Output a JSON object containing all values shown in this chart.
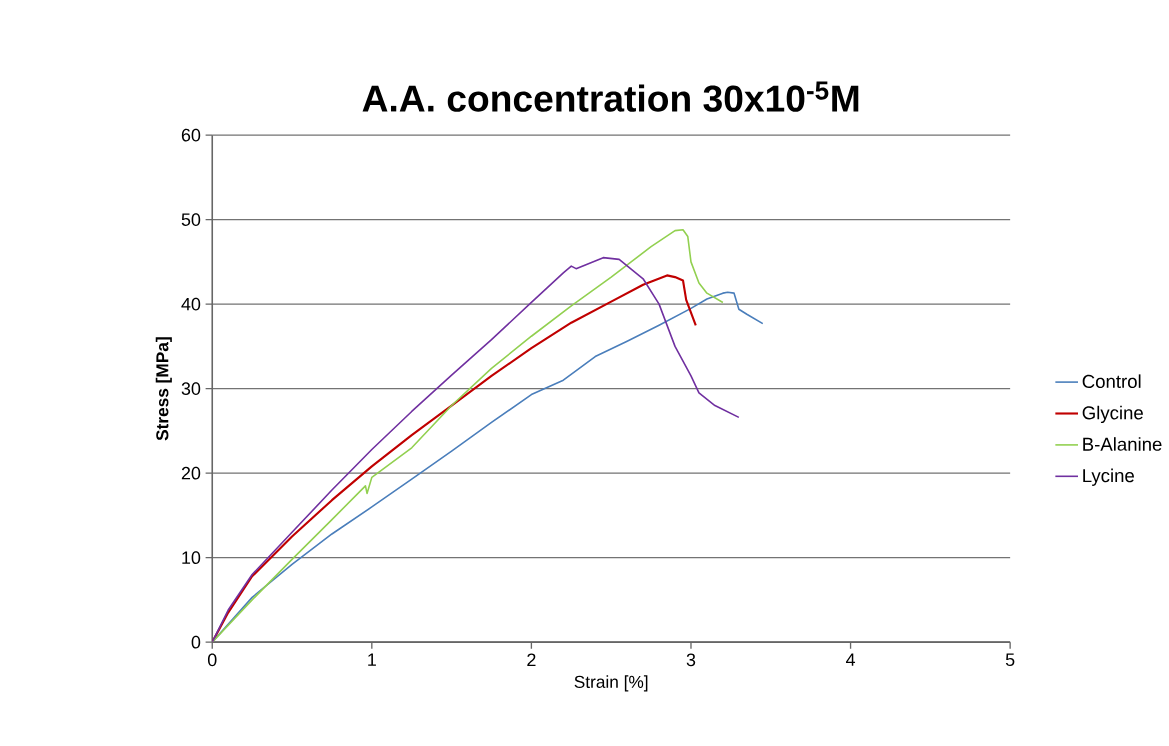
{
  "chart_data": {
    "type": "line",
    "title": "A.A. concentration 30x10$^{-5}$M",
    "xlabel": "Strain [%]",
    "ylabel": "Stress [MPa]",
    "xlim": [
      0,
      5
    ],
    "ylim": [
      0,
      60
    ],
    "xticks": [
      0,
      1,
      2,
      3,
      4,
      5
    ],
    "yticks": [
      0,
      10,
      20,
      30,
      40,
      50,
      60
    ],
    "grid": "y",
    "legend": "right",
    "marker": "none",
    "line_style": "solid",
    "series": [
      {
        "name": "Control",
        "color": "#4a7ebb",
        "x": [
          0,
          0.25,
          0.5,
          0.75,
          1,
          1.25,
          1.5,
          1.75,
          2,
          2.2,
          2.4,
          2.6,
          2.8,
          3.0,
          3.1,
          3.2,
          3.23,
          3.27,
          3.3,
          3.35,
          3.45
        ],
        "values": [
          0,
          5.3,
          9.2,
          12.8,
          16,
          19.3,
          22.6,
          26,
          29.3,
          31,
          33.8,
          35.6,
          37.5,
          39.5,
          40.6,
          41.3,
          41.4,
          41.3,
          39.4,
          38.8,
          37.7
        ]
      },
      {
        "name": "Glycine",
        "color": "#c00000",
        "x": [
          0,
          0.1,
          0.25,
          0.5,
          0.75,
          1,
          1.25,
          1.5,
          1.75,
          2,
          2.25,
          2.5,
          2.7,
          2.85,
          2.9,
          2.95,
          2.97,
          3.0,
          3.03
        ],
        "values": [
          0,
          3.5,
          7.8,
          12.5,
          16.8,
          20.8,
          24.5,
          28,
          31.5,
          34.8,
          37.8,
          40.3,
          42.3,
          43.4,
          43.2,
          42.8,
          40.5,
          39,
          37.5
        ]
      },
      {
        "name": "B-Alanine",
        "color": "#92d050",
        "x": [
          0,
          0.25,
          0.5,
          0.75,
          0.96,
          0.97,
          1.0,
          1.25,
          1.5,
          1.75,
          2.0,
          2.25,
          2.5,
          2.75,
          2.9,
          2.95,
          2.98,
          3.0,
          3.05,
          3.1,
          3.2
        ],
        "values": [
          0,
          5,
          9.8,
          14.5,
          18.5,
          17.6,
          19.5,
          23,
          28,
          32.4,
          36.2,
          39.8,
          43.2,
          46.8,
          48.7,
          48.8,
          48,
          45,
          42.5,
          41.3,
          40.2
        ]
      },
      {
        "name": "Lycine",
        "color": "#7030a0",
        "x": [
          0,
          0.1,
          0.25,
          0.5,
          0.75,
          1,
          1.25,
          1.5,
          1.75,
          2.0,
          2.2,
          2.25,
          2.28,
          2.45,
          2.55,
          2.7,
          2.8,
          2.9,
          3.0,
          3.05,
          3.15,
          3.3
        ],
        "values": [
          0,
          3.8,
          8,
          13,
          18,
          22.8,
          27.3,
          31.6,
          35.8,
          40.2,
          43.7,
          44.5,
          44.2,
          45.5,
          45.3,
          43,
          40,
          35,
          31.5,
          29.5,
          28,
          26.6
        ]
      }
    ]
  }
}
